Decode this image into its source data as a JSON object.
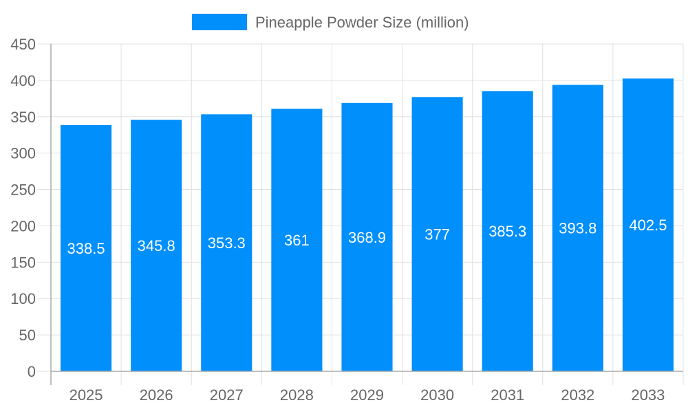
{
  "chart_data": {
    "type": "bar",
    "title": "",
    "xlabel": "",
    "ylabel": "",
    "categories": [
      "2025",
      "2026",
      "2027",
      "2028",
      "2029",
      "2030",
      "2031",
      "2032",
      "2033"
    ],
    "series": [
      {
        "name": "Pineapple Powder Size (million)",
        "values": [
          338.5,
          345.8,
          353.3,
          361,
          368.9,
          377,
          385.3,
          393.8,
          402.5
        ],
        "color": "#008ffb"
      }
    ],
    "data_labels": [
      "338.5",
      "345.8",
      "353.3",
      "361",
      "368.9",
      "377",
      "385.3",
      "393.8",
      "402.5"
    ],
    "ylim": [
      0,
      450
    ],
    "y_ticks": [
      "0",
      "50",
      "100",
      "150",
      "200",
      "250",
      "300",
      "350",
      "400",
      "450"
    ],
    "grid": true,
    "legend_position": "top"
  }
}
